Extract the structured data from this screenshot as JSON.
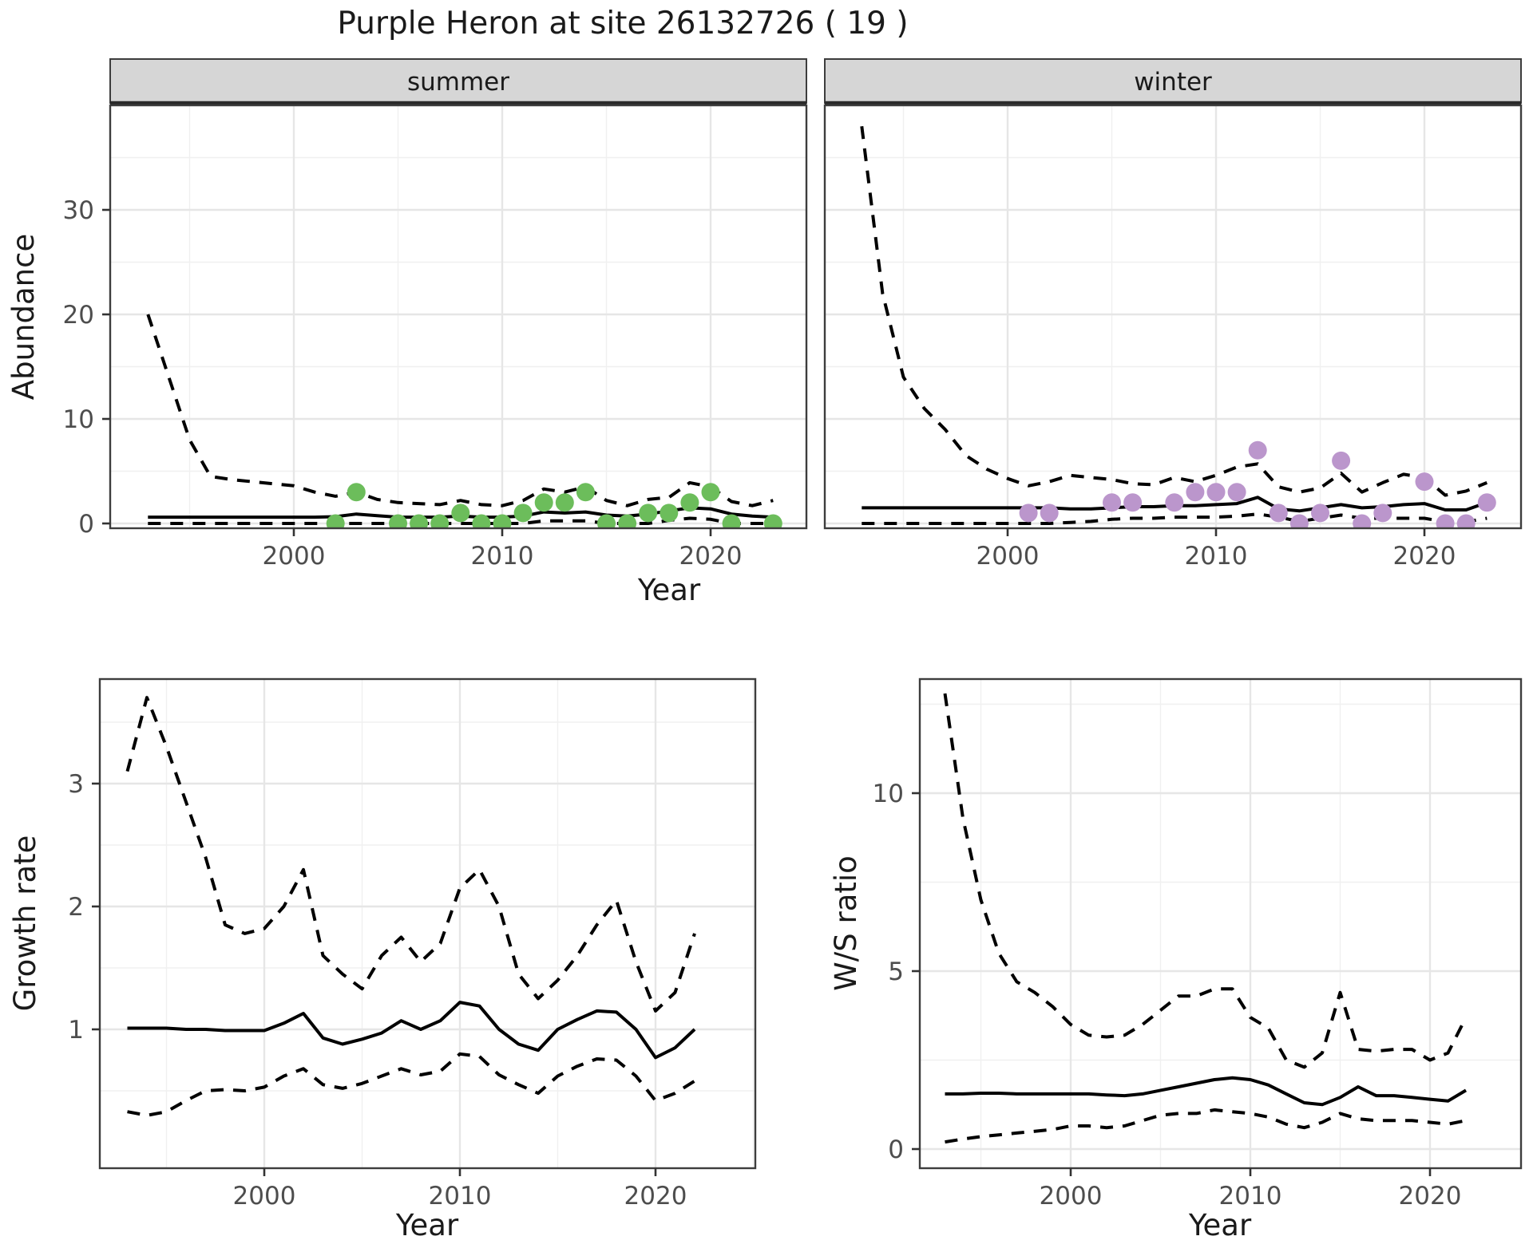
{
  "title": "Purple Heron at site 26132726 ( 19 )",
  "colors": {
    "summer_point": "#6cbd5b",
    "winter_point": "#bb96cc",
    "line": "#000000",
    "strip_bg": "#d6d6d6",
    "panel_border": "#3d3d3d",
    "grid_major": "#e6e6e6",
    "grid_minor": "#f0f0f0",
    "tick_text": "#4d4d4d",
    "text": "#1a1a1a"
  },
  "chart_data": [
    {
      "id": "abundance-summer",
      "type": "line",
      "facet_label": "summer",
      "ylabel": "Abundance",
      "xlabel": "Year",
      "x_ticks": [
        2000,
        2010,
        2020
      ],
      "y_ticks": [
        0,
        10,
        20,
        30
      ],
      "ylim": [
        -0.5,
        40
      ],
      "xlim": [
        1991.2,
        2024.6
      ],
      "grid": true,
      "legend_position": "none",
      "years": [
        1993,
        1994,
        1995,
        1996,
        1997,
        1998,
        1999,
        2000,
        2001,
        2002,
        2003,
        2004,
        2005,
        2006,
        2007,
        2008,
        2009,
        2010,
        2011,
        2012,
        2013,
        2014,
        2015,
        2016,
        2017,
        2018,
        2019,
        2020,
        2021,
        2022,
        2023
      ],
      "series": [
        {
          "name": "upper_ci",
          "style": "dashed",
          "values": [
            20,
            14,
            8,
            4.5,
            4.2,
            4.0,
            3.8,
            3.6,
            3.0,
            2.6,
            3.0,
            2.3,
            2.0,
            1.9,
            1.8,
            2.2,
            1.8,
            1.7,
            2.2,
            3.3,
            3.0,
            3.5,
            2.2,
            1.7,
            2.3,
            2.5,
            3.9,
            3.5,
            2.1,
            1.7,
            2.2
          ]
        },
        {
          "name": "median",
          "style": "solid",
          "values": [
            0.6,
            0.6,
            0.6,
            0.6,
            0.6,
            0.6,
            0.6,
            0.6,
            0.6,
            0.65,
            0.9,
            0.75,
            0.6,
            0.6,
            0.6,
            0.7,
            0.6,
            0.6,
            0.7,
            1.1,
            1.0,
            1.1,
            0.8,
            0.7,
            0.9,
            1.2,
            1.5,
            1.4,
            0.9,
            0.7,
            0.6
          ]
        },
        {
          "name": "lower_ci",
          "style": "dashed",
          "values": [
            0,
            0,
            0,
            0,
            0,
            0,
            0,
            0,
            0,
            0,
            0,
            0,
            0,
            0,
            0,
            0,
            0,
            0,
            0,
            0.25,
            0.25,
            0.25,
            0,
            0,
            0,
            0.3,
            0.5,
            0.4,
            0,
            0,
            0
          ]
        }
      ],
      "points": {
        "years": [
          2002,
          2003,
          2005,
          2006,
          2007,
          2008,
          2009,
          2010,
          2011,
          2012,
          2013,
          2014,
          2015,
          2016,
          2017,
          2018,
          2019,
          2020,
          2021,
          2023
        ],
        "values": [
          0,
          3,
          0,
          0,
          0,
          1,
          0,
          0,
          1,
          2,
          2,
          3,
          0,
          0,
          1,
          1,
          2,
          3,
          0,
          0
        ]
      }
    },
    {
      "id": "abundance-winter",
      "type": "line",
      "facet_label": "winter",
      "ylabel": "Abundance",
      "xlabel": "Year",
      "x_ticks": [
        2000,
        2010,
        2020
      ],
      "y_ticks": [
        0,
        10,
        20,
        30
      ],
      "ylim": [
        -0.5,
        40
      ],
      "xlim": [
        1991.2,
        2024.6
      ],
      "grid": true,
      "legend_position": "none",
      "years": [
        1993,
        1994,
        1995,
        1996,
        1997,
        1998,
        1999,
        2000,
        2001,
        2002,
        2003,
        2004,
        2005,
        2006,
        2007,
        2008,
        2009,
        2010,
        2011,
        2012,
        2013,
        2014,
        2015,
        2016,
        2017,
        2018,
        2019,
        2020,
        2021,
        2022,
        2023
      ],
      "series": [
        {
          "name": "upper_ci",
          "style": "dashed",
          "values": [
            38,
            22,
            14,
            11,
            9,
            6.5,
            5.2,
            4.3,
            3.6,
            4.0,
            4.6,
            4.4,
            4.2,
            3.8,
            3.7,
            4.4,
            4.0,
            4.6,
            5.4,
            5.7,
            3.5,
            3.0,
            3.4,
            4.8,
            3.0,
            3.9,
            4.7,
            4.4,
            2.7,
            3.1,
            3.9
          ]
        },
        {
          "name": "median",
          "style": "solid",
          "values": [
            1.5,
            1.5,
            1.5,
            1.5,
            1.5,
            1.5,
            1.5,
            1.5,
            1.5,
            1.5,
            1.4,
            1.4,
            1.5,
            1.6,
            1.6,
            1.7,
            1.7,
            1.8,
            1.9,
            2.5,
            1.4,
            1.2,
            1.5,
            1.8,
            1.5,
            1.6,
            1.8,
            1.9,
            1.3,
            1.3,
            2.0
          ]
        },
        {
          "name": "lower_ci",
          "style": "dashed",
          "values": [
            0,
            0,
            0,
            0,
            0,
            0,
            0,
            0,
            0,
            0,
            0.1,
            0.2,
            0.4,
            0.5,
            0.5,
            0.6,
            0.6,
            0.6,
            0.7,
            0.9,
            0.6,
            0.2,
            0.5,
            0.8,
            0.5,
            0.5,
            0.5,
            0.5,
            0.15,
            0.15,
            0.5
          ]
        }
      ],
      "points": {
        "years": [
          2001,
          2002,
          2005,
          2006,
          2008,
          2009,
          2010,
          2011,
          2012,
          2013,
          2014,
          2015,
          2016,
          2017,
          2018,
          2020,
          2021,
          2022,
          2023
        ],
        "values": [
          1,
          1,
          2,
          2,
          2,
          3,
          3,
          3,
          7,
          1,
          0,
          1,
          6,
          0,
          1,
          4,
          0,
          0,
          2
        ]
      }
    },
    {
      "id": "growth-rate",
      "type": "line",
      "facet_label": "",
      "ylabel": "Growth rate",
      "xlabel": "Year",
      "x_ticks": [
        2000,
        2010,
        2020
      ],
      "y_ticks": [
        1,
        2,
        3
      ],
      "ylim": [
        -0.1,
        3.85
      ],
      "xlim": [
        1991.6,
        2025.1
      ],
      "grid": true,
      "legend_position": "none",
      "years": [
        1993,
        1994,
        1995,
        1996,
        1997,
        1998,
        1999,
        2000,
        2001,
        2002,
        2003,
        2004,
        2005,
        2006,
        2007,
        2008,
        2009,
        2010,
        2011,
        2012,
        2013,
        2014,
        2015,
        2016,
        2017,
        2018,
        2019,
        2020,
        2021,
        2022
      ],
      "series": [
        {
          "name": "upper_ci",
          "style": "dashed",
          "values": [
            3.1,
            3.7,
            3.3,
            2.85,
            2.4,
            1.85,
            1.78,
            1.82,
            2.0,
            2.3,
            1.6,
            1.45,
            1.33,
            1.6,
            1.75,
            1.55,
            1.7,
            2.15,
            2.3,
            2.0,
            1.45,
            1.25,
            1.4,
            1.6,
            1.85,
            2.05,
            1.55,
            1.15,
            1.3,
            1.78
          ]
        },
        {
          "name": "median",
          "style": "solid",
          "values": [
            1.01,
            1.01,
            1.01,
            1.0,
            1.0,
            0.99,
            0.99,
            0.99,
            1.05,
            1.13,
            0.93,
            0.88,
            0.92,
            0.97,
            1.07,
            1.0,
            1.07,
            1.22,
            1.19,
            1.0,
            0.88,
            0.83,
            1.0,
            1.08,
            1.15,
            1.14,
            1.0,
            0.77,
            0.85,
            1.0
          ]
        },
        {
          "name": "lower_ci",
          "style": "dashed",
          "values": [
            0.33,
            0.3,
            0.33,
            0.42,
            0.5,
            0.51,
            0.5,
            0.53,
            0.62,
            0.68,
            0.55,
            0.52,
            0.56,
            0.62,
            0.68,
            0.63,
            0.66,
            0.8,
            0.78,
            0.63,
            0.55,
            0.48,
            0.62,
            0.7,
            0.76,
            0.75,
            0.62,
            0.42,
            0.48,
            0.58
          ]
        }
      ],
      "points": {
        "years": [],
        "values": []
      }
    },
    {
      "id": "ws-ratio",
      "type": "line",
      "facet_label": "",
      "ylabel": "W/S ratio",
      "xlabel": "Year",
      "x_ticks": [
        2000,
        2010,
        2020
      ],
      "y_ticks": [
        0,
        5,
        10
      ],
      "ylim": [
        -0.5,
        13.2
      ],
      "xlim": [
        1991.6,
        2025.1
      ],
      "grid": true,
      "legend_position": "none",
      "years": [
        1993,
        1994,
        1995,
        1996,
        1997,
        1998,
        1999,
        2000,
        2001,
        2002,
        2003,
        2004,
        2005,
        2006,
        2007,
        2008,
        2009,
        2010,
        2011,
        2012,
        2013,
        2014,
        2015,
        2016,
        2017,
        2018,
        2019,
        2020,
        2021,
        2022
      ],
      "series": [
        {
          "name": "upper_ci",
          "style": "dashed",
          "values": [
            12.8,
            9.3,
            7.0,
            5.5,
            4.7,
            4.4,
            4.0,
            3.5,
            3.2,
            3.15,
            3.2,
            3.5,
            3.9,
            4.3,
            4.3,
            4.5,
            4.5,
            3.7,
            3.4,
            2.5,
            2.3,
            2.7,
            4.4,
            2.8,
            2.75,
            2.8,
            2.8,
            2.5,
            2.7,
            3.7
          ]
        },
        {
          "name": "median",
          "style": "solid",
          "values": [
            1.55,
            1.55,
            1.57,
            1.57,
            1.55,
            1.55,
            1.55,
            1.55,
            1.55,
            1.52,
            1.5,
            1.55,
            1.65,
            1.75,
            1.85,
            1.95,
            2.0,
            1.95,
            1.8,
            1.55,
            1.3,
            1.25,
            1.45,
            1.75,
            1.5,
            1.5,
            1.45,
            1.4,
            1.35,
            1.65
          ]
        },
        {
          "name": "lower_ci",
          "style": "dashed",
          "values": [
            0.2,
            0.28,
            0.35,
            0.4,
            0.45,
            0.5,
            0.55,
            0.65,
            0.65,
            0.6,
            0.65,
            0.8,
            0.95,
            1.0,
            1.0,
            1.1,
            1.05,
            1.0,
            0.9,
            0.7,
            0.6,
            0.75,
            1.0,
            0.85,
            0.8,
            0.8,
            0.8,
            0.75,
            0.7,
            0.8
          ]
        }
      ],
      "points": {
        "years": [],
        "values": []
      }
    }
  ]
}
